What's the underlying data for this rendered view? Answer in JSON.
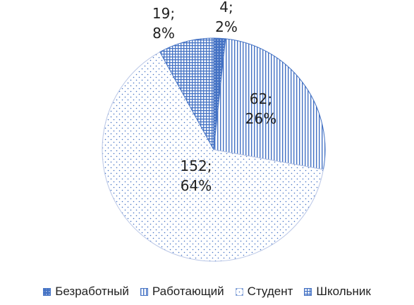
{
  "chart_data": {
    "type": "pie",
    "title": "",
    "series": [
      {
        "name": "Безработный",
        "value": 4,
        "label_value": "4;",
        "label_pct": "2%",
        "pattern": "solid-dots",
        "color": "#4472C4"
      },
      {
        "name": "Работающий",
        "value": 62,
        "label_value": "62;",
        "label_pct": "26%",
        "pattern": "vertical",
        "color": "#4472C4"
      },
      {
        "name": "Студент",
        "value": 152,
        "label_value": "152;",
        "label_pct": "64%",
        "pattern": "dots",
        "color": "#4472C4"
      },
      {
        "name": "Школьник",
        "value": 19,
        "label_value": "19;",
        "label_pct": "8%",
        "pattern": "grid",
        "color": "#4472C4"
      }
    ],
    "legend_position": "bottom",
    "start_angle": "12 o'clock, clockwise"
  }
}
